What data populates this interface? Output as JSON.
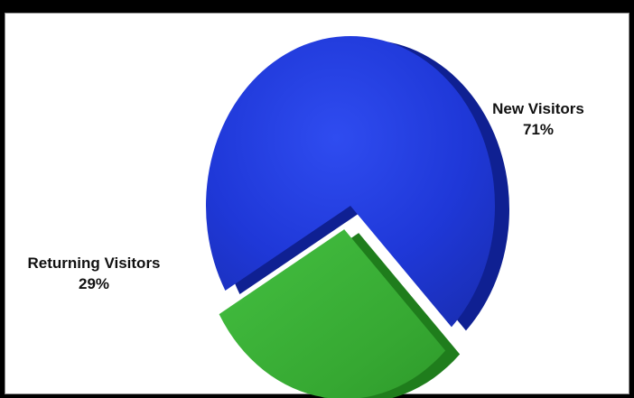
{
  "chart_data": {
    "type": "pie",
    "title": "",
    "slices": [
      {
        "label": "New Visitors",
        "value": 71,
        "value_label": "71%",
        "color": "#1e37d8",
        "side_color": "#102290",
        "exploded": false
      },
      {
        "label": "Returning Visitors",
        "value": 29,
        "value_label": "29%",
        "color": "#3fb83b",
        "side_color": "#1f7f1c",
        "exploded": true
      }
    ],
    "style": "3d-exploded",
    "legend": "none"
  }
}
